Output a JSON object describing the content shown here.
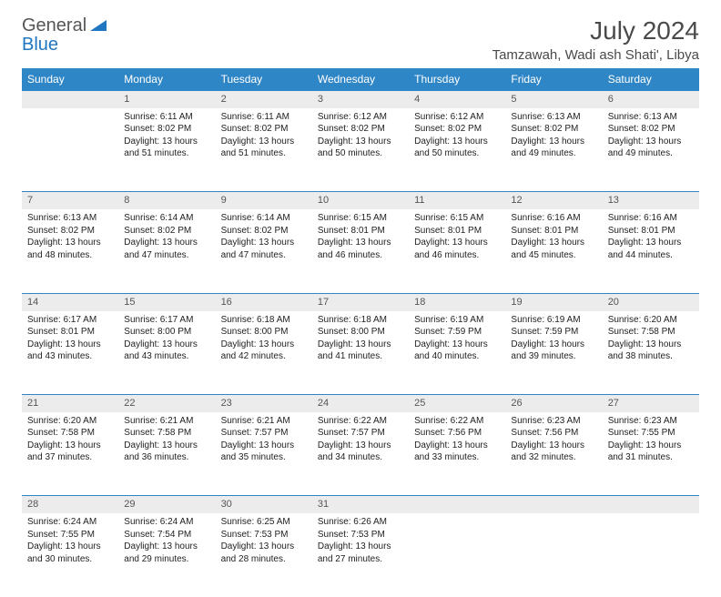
{
  "brand": {
    "word1": "General",
    "word2": "Blue"
  },
  "title": "July 2024",
  "location": "Tamzawah, Wadi ash Shati', Libya",
  "weekdays": [
    "Sunday",
    "Monday",
    "Tuesday",
    "Wednesday",
    "Thursday",
    "Friday",
    "Saturday"
  ],
  "colors": {
    "header_bg": "#2f86c6",
    "header_text": "#ffffff",
    "num_bg": "#ececec",
    "border": "#2f86c6",
    "logo_blue": "#2176c1"
  },
  "weeks": [
    [
      null,
      {
        "n": "1",
        "sr": "6:11 AM",
        "ss": "8:02 PM",
        "dl": "13 hours and 51 minutes."
      },
      {
        "n": "2",
        "sr": "6:11 AM",
        "ss": "8:02 PM",
        "dl": "13 hours and 51 minutes."
      },
      {
        "n": "3",
        "sr": "6:12 AM",
        "ss": "8:02 PM",
        "dl": "13 hours and 50 minutes."
      },
      {
        "n": "4",
        "sr": "6:12 AM",
        "ss": "8:02 PM",
        "dl": "13 hours and 50 minutes."
      },
      {
        "n": "5",
        "sr": "6:13 AM",
        "ss": "8:02 PM",
        "dl": "13 hours and 49 minutes."
      },
      {
        "n": "6",
        "sr": "6:13 AM",
        "ss": "8:02 PM",
        "dl": "13 hours and 49 minutes."
      }
    ],
    [
      {
        "n": "7",
        "sr": "6:13 AM",
        "ss": "8:02 PM",
        "dl": "13 hours and 48 minutes."
      },
      {
        "n": "8",
        "sr": "6:14 AM",
        "ss": "8:02 PM",
        "dl": "13 hours and 47 minutes."
      },
      {
        "n": "9",
        "sr": "6:14 AM",
        "ss": "8:02 PM",
        "dl": "13 hours and 47 minutes."
      },
      {
        "n": "10",
        "sr": "6:15 AM",
        "ss": "8:01 PM",
        "dl": "13 hours and 46 minutes."
      },
      {
        "n": "11",
        "sr": "6:15 AM",
        "ss": "8:01 PM",
        "dl": "13 hours and 46 minutes."
      },
      {
        "n": "12",
        "sr": "6:16 AM",
        "ss": "8:01 PM",
        "dl": "13 hours and 45 minutes."
      },
      {
        "n": "13",
        "sr": "6:16 AM",
        "ss": "8:01 PM",
        "dl": "13 hours and 44 minutes."
      }
    ],
    [
      {
        "n": "14",
        "sr": "6:17 AM",
        "ss": "8:01 PM",
        "dl": "13 hours and 43 minutes."
      },
      {
        "n": "15",
        "sr": "6:17 AM",
        "ss": "8:00 PM",
        "dl": "13 hours and 43 minutes."
      },
      {
        "n": "16",
        "sr": "6:18 AM",
        "ss": "8:00 PM",
        "dl": "13 hours and 42 minutes."
      },
      {
        "n": "17",
        "sr": "6:18 AM",
        "ss": "8:00 PM",
        "dl": "13 hours and 41 minutes."
      },
      {
        "n": "18",
        "sr": "6:19 AM",
        "ss": "7:59 PM",
        "dl": "13 hours and 40 minutes."
      },
      {
        "n": "19",
        "sr": "6:19 AM",
        "ss": "7:59 PM",
        "dl": "13 hours and 39 minutes."
      },
      {
        "n": "20",
        "sr": "6:20 AM",
        "ss": "7:58 PM",
        "dl": "13 hours and 38 minutes."
      }
    ],
    [
      {
        "n": "21",
        "sr": "6:20 AM",
        "ss": "7:58 PM",
        "dl": "13 hours and 37 minutes."
      },
      {
        "n": "22",
        "sr": "6:21 AM",
        "ss": "7:58 PM",
        "dl": "13 hours and 36 minutes."
      },
      {
        "n": "23",
        "sr": "6:21 AM",
        "ss": "7:57 PM",
        "dl": "13 hours and 35 minutes."
      },
      {
        "n": "24",
        "sr": "6:22 AM",
        "ss": "7:57 PM",
        "dl": "13 hours and 34 minutes."
      },
      {
        "n": "25",
        "sr": "6:22 AM",
        "ss": "7:56 PM",
        "dl": "13 hours and 33 minutes."
      },
      {
        "n": "26",
        "sr": "6:23 AM",
        "ss": "7:56 PM",
        "dl": "13 hours and 32 minutes."
      },
      {
        "n": "27",
        "sr": "6:23 AM",
        "ss": "7:55 PM",
        "dl": "13 hours and 31 minutes."
      }
    ],
    [
      {
        "n": "28",
        "sr": "6:24 AM",
        "ss": "7:55 PM",
        "dl": "13 hours and 30 minutes."
      },
      {
        "n": "29",
        "sr": "6:24 AM",
        "ss": "7:54 PM",
        "dl": "13 hours and 29 minutes."
      },
      {
        "n": "30",
        "sr": "6:25 AM",
        "ss": "7:53 PM",
        "dl": "13 hours and 28 minutes."
      },
      {
        "n": "31",
        "sr": "6:26 AM",
        "ss": "7:53 PM",
        "dl": "13 hours and 27 minutes."
      },
      null,
      null,
      null
    ]
  ]
}
